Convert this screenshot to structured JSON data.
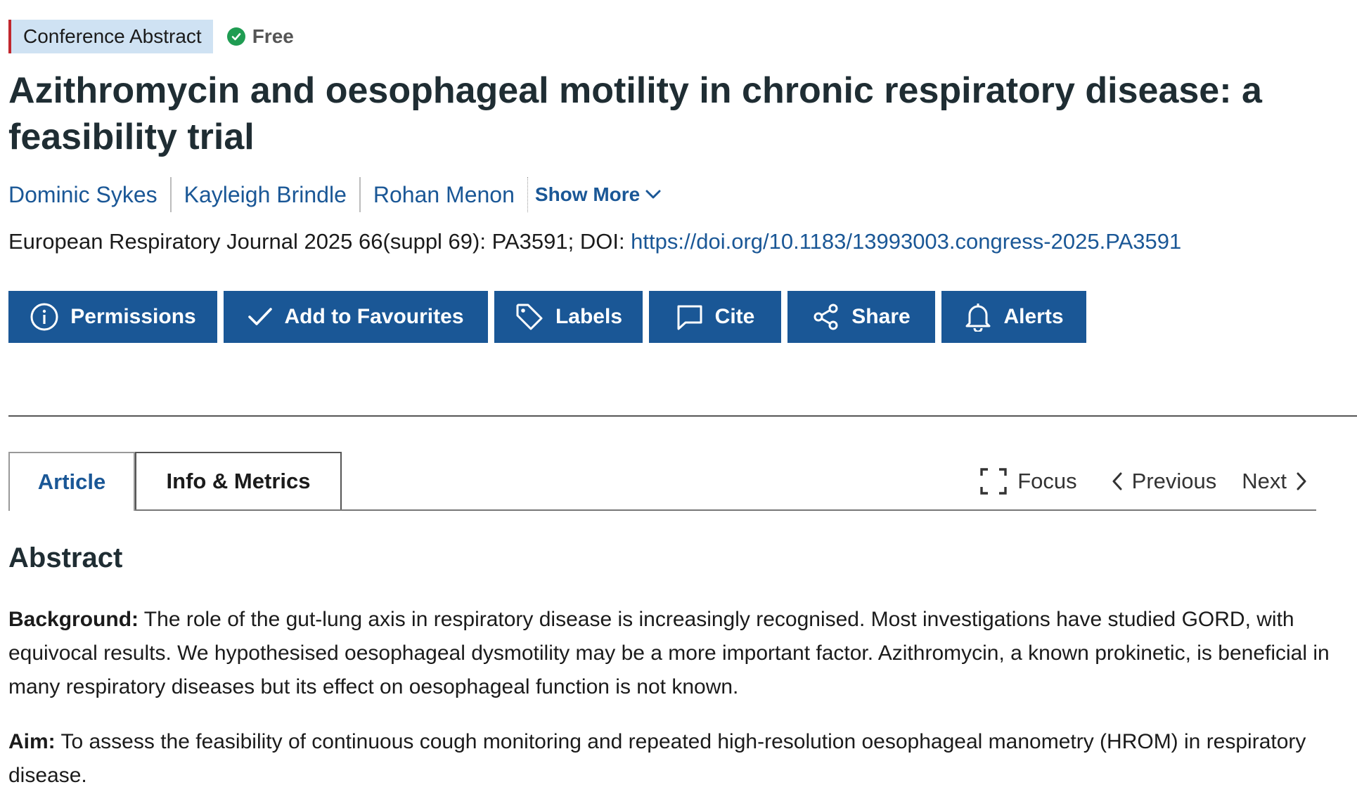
{
  "badges": {
    "type": "Conference Abstract",
    "access": "Free"
  },
  "title": "Azithromycin and oesophageal motility in chronic respiratory disease: a feasibility trial",
  "authors": [
    "Dominic Sykes",
    "Kayleigh Brindle",
    "Rohan Menon"
  ],
  "show_more_label": "Show More",
  "citation": {
    "text": "European Respiratory Journal 2025 66(suppl 69): PA3591; DOI: ",
    "doi_url": "https://doi.org/10.1183/13993003.congress-2025.PA3591"
  },
  "toolbar": {
    "buttons": [
      {
        "label": "Permissions",
        "icon": "info-icon"
      },
      {
        "label": "Add to Favourites",
        "icon": "checkmark-icon"
      },
      {
        "label": "Labels",
        "icon": "tag-icon"
      },
      {
        "label": "Cite",
        "icon": "speech-bubble-icon"
      },
      {
        "label": "Share",
        "icon": "share-icon"
      },
      {
        "label": "Alerts",
        "icon": "bell-icon"
      }
    ]
  },
  "tabs": [
    {
      "label": "Article",
      "active": true
    },
    {
      "label": "Info & Metrics",
      "active": false
    }
  ],
  "tab_nav": {
    "focus": "Focus",
    "previous": "Previous",
    "next": "Next"
  },
  "abstract": {
    "heading": "Abstract",
    "sections": [
      {
        "label": "Background:",
        "text": " The role of the gut-lung axis in respiratory disease is increasingly recognised. Most investigations have studied GORD, with equivocal results. We hypothesised oesophageal dysmotility may be a more important factor. Azithromycin, a known prokinetic, is beneficial in many respiratory diseases but its effect on oesophageal function is not known."
      },
      {
        "label": "Aim:",
        "text": " To assess the feasibility of continuous cough monitoring and repeated high-resolution oesophageal manometry (HROM) in respiratory disease."
      }
    ]
  },
  "colors": {
    "accent": "#1a5796",
    "badge_bg": "#cfe2f3",
    "badge_border": "#c1272d",
    "free_check": "#1f9c52"
  }
}
